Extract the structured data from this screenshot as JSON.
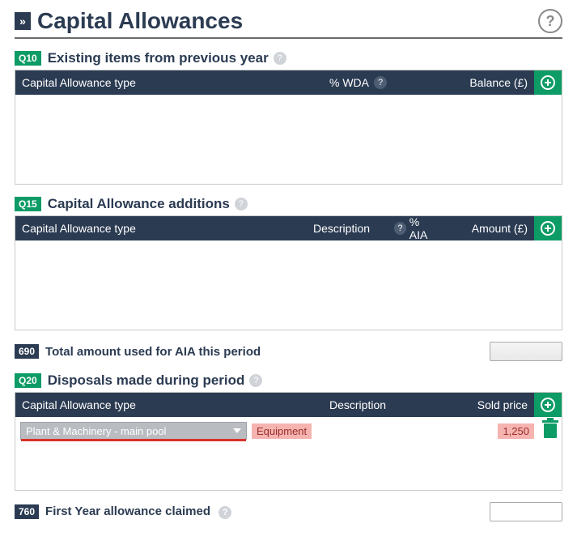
{
  "header": {
    "title": "Capital Allowances"
  },
  "sections": {
    "q10": {
      "badge": "Q10",
      "title": "Existing items from previous year",
      "columns": {
        "type": "Capital Allowance type",
        "wda": "% WDA",
        "balance": "Balance (£)"
      }
    },
    "q15": {
      "badge": "Q15",
      "title": "Capital Allowance additions",
      "columns": {
        "type": "Capital Allowance type",
        "description": "Description",
        "aia": "% AIA",
        "amount": "Amount (£)"
      }
    },
    "r690": {
      "badge": "690",
      "label": "Total amount used for AIA this period",
      "value": ""
    },
    "q20": {
      "badge": "Q20",
      "title": "Disposals made during period",
      "columns": {
        "type": "Capital Allowance type",
        "description": "Description",
        "sold": "Sold price"
      },
      "row": {
        "type_selected": "Plant & Machinery - main pool",
        "description": "Equipment",
        "sold_price": "1,250"
      }
    },
    "r760": {
      "badge": "760",
      "label": "First Year allowance claimed",
      "value": ""
    }
  }
}
